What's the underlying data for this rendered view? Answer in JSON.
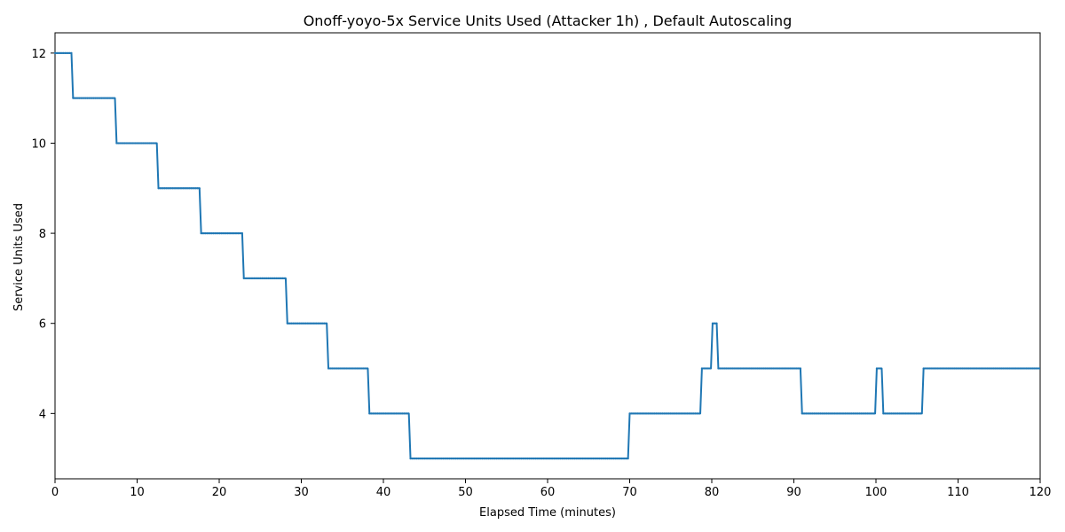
{
  "chart_data": {
    "type": "line",
    "title": "Onoff-yoyo-5x Service Units Used (Attacker 1h) , Default Autoscaling",
    "xlabel": "Elapsed Time (minutes)",
    "ylabel": "Service Units Used",
    "xlim": [
      0,
      120
    ],
    "ylim": [
      2.55,
      12.45
    ],
    "xticks": [
      0,
      10,
      20,
      30,
      40,
      50,
      60,
      70,
      80,
      90,
      100,
      110,
      120
    ],
    "yticks": [
      4,
      6,
      8,
      10,
      12
    ],
    "grid": false,
    "color": "#1f77b4",
    "series": [
      {
        "x": [
          0,
          2.0,
          2.2,
          7.3,
          7.5,
          12.4,
          12.6,
          17.6,
          17.8,
          22.8,
          23.0,
          28.1,
          28.3,
          33.1,
          33.3,
          38.1,
          38.3,
          43.1,
          43.3,
          69.8,
          70.0,
          78.6,
          78.8,
          79.9,
          80.1,
          80.6,
          80.8,
          90.8,
          91.0,
          99.9,
          100.1,
          100.7,
          100.9,
          105.6,
          105.8,
          120
        ],
        "y": [
          12,
          12,
          11,
          11,
          10,
          10,
          9,
          9,
          8,
          8,
          7,
          7,
          6,
          6,
          5,
          5,
          4,
          4,
          3,
          3,
          4,
          4,
          5,
          5,
          6,
          6,
          5,
          5,
          4,
          4,
          5,
          5,
          4,
          4,
          5,
          5
        ]
      }
    ]
  }
}
